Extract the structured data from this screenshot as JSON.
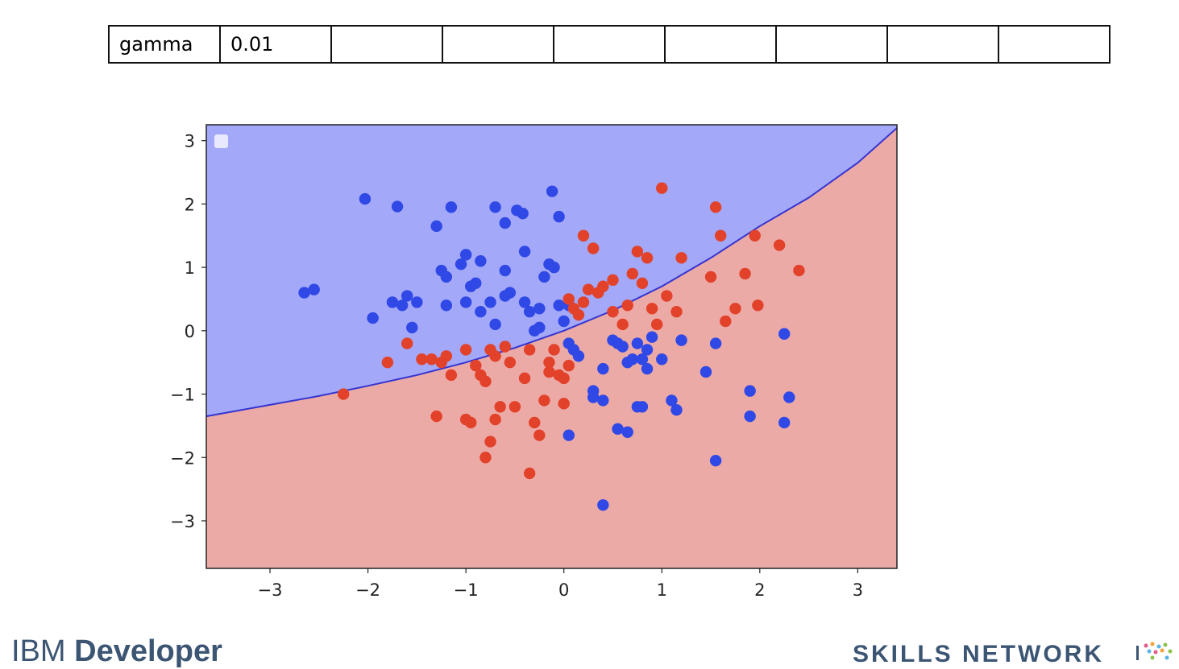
{
  "params": {
    "label": "gamma",
    "value": "0.01",
    "empty_cells": 7
  },
  "footer": {
    "left_plain": "IBM ",
    "left_strong": "Developer",
    "right": "SKILLS NETWORK"
  },
  "colors": {
    "region_blue": "#a3a8f8",
    "region_red": "#ecaaa7",
    "point_blue": "#2f48e6",
    "point_red": "#e2412a",
    "boundary": "#3434d0"
  },
  "chart_data": {
    "type": "scatter",
    "xlim": [
      -3.65,
      3.4
    ],
    "ylim": [
      -3.75,
      3.25
    ],
    "xticks": [
      "−3",
      "−2",
      "−1",
      "0",
      "1",
      "2",
      "3"
    ],
    "xtick_values": [
      -3,
      -2,
      -1,
      0,
      1,
      2,
      3
    ],
    "yticks": [
      "3",
      "2",
      "1",
      "0",
      "−1",
      "−2",
      "−3"
    ],
    "ytick_values": [
      3,
      2,
      1,
      0,
      -1,
      -2,
      -3
    ],
    "grid": false,
    "legend": "top-left",
    "decision_boundary": {
      "x": [
        -3.65,
        -3,
        -2.5,
        -2,
        -1.5,
        -1,
        -0.5,
        0,
        0.5,
        1,
        1.5,
        2,
        2.5,
        3,
        3.4
      ],
      "y": [
        -1.35,
        -1.17,
        -1.03,
        -0.87,
        -0.7,
        -0.5,
        -0.27,
        0.0,
        0.32,
        0.7,
        1.15,
        1.65,
        2.1,
        2.65,
        3.2
      ]
    },
    "series": [
      {
        "class": "blue",
        "points": [
          [
            -2.65,
            0.6
          ],
          [
            -2.55,
            0.65
          ],
          [
            -2.03,
            2.08
          ],
          [
            -1.7,
            1.96
          ],
          [
            -1.95,
            0.2
          ],
          [
            -1.75,
            0.45
          ],
          [
            -1.65,
            0.4
          ],
          [
            -1.6,
            0.55
          ],
          [
            -1.5,
            0.45
          ],
          [
            -1.55,
            0.05
          ],
          [
            -1.3,
            1.65
          ],
          [
            -1.25,
            0.95
          ],
          [
            -1.2,
            0.85
          ],
          [
            -1.15,
            1.95
          ],
          [
            -1.05,
            1.05
          ],
          [
            -1.0,
            1.2
          ],
          [
            -0.95,
            0.7
          ],
          [
            -0.9,
            0.75
          ],
          [
            -0.85,
            1.1
          ],
          [
            -0.75,
            0.45
          ],
          [
            -0.85,
            0.3
          ],
          [
            -0.7,
            1.95
          ],
          [
            -0.7,
            0.1
          ],
          [
            -0.6,
            1.7
          ],
          [
            -0.6,
            0.95
          ],
          [
            -0.55,
            0.6
          ],
          [
            -0.48,
            1.9
          ],
          [
            -0.42,
            1.85
          ],
          [
            -0.4,
            0.45
          ],
          [
            -0.35,
            0.3
          ],
          [
            -0.3,
            0.0
          ],
          [
            -0.25,
            0.05
          ],
          [
            -0.4,
            1.25
          ],
          [
            -0.2,
            0.85
          ],
          [
            -0.15,
            1.05
          ],
          [
            -0.12,
            2.2
          ],
          [
            -0.1,
            1.0
          ],
          [
            -0.05,
            1.8
          ],
          [
            -0.05,
            0.4
          ],
          [
            0.0,
            0.15
          ],
          [
            0.05,
            0.4
          ],
          [
            0.05,
            -0.2
          ],
          [
            0.1,
            -0.3
          ],
          [
            0.15,
            -0.4
          ],
          [
            0.3,
            -0.95
          ],
          [
            0.3,
            -1.05
          ],
          [
            0.4,
            -1.1
          ],
          [
            0.4,
            -0.6
          ],
          [
            0.5,
            -0.15
          ],
          [
            0.55,
            -0.2
          ],
          [
            0.6,
            -0.25
          ],
          [
            0.65,
            -0.5
          ],
          [
            0.7,
            -0.45
          ],
          [
            0.75,
            -0.2
          ],
          [
            0.8,
            -0.45
          ],
          [
            0.85,
            -0.3
          ],
          [
            0.85,
            -0.6
          ],
          [
            0.9,
            -0.1
          ],
          [
            1.0,
            -0.45
          ],
          [
            1.1,
            -1.1
          ],
          [
            1.15,
            -1.25
          ],
          [
            1.2,
            -0.15
          ],
          [
            1.45,
            -0.65
          ],
          [
            1.55,
            -0.2
          ],
          [
            0.55,
            -1.55
          ],
          [
            0.65,
            -1.6
          ],
          [
            0.75,
            -1.2
          ],
          [
            0.8,
            -1.2
          ],
          [
            0.05,
            -1.65
          ],
          [
            1.9,
            -0.95
          ],
          [
            1.9,
            -1.35
          ],
          [
            2.25,
            -0.05
          ],
          [
            2.3,
            -1.05
          ],
          [
            2.25,
            -1.45
          ],
          [
            1.55,
            -2.05
          ],
          [
            0.4,
            -2.75
          ],
          [
            -0.25,
            0.35
          ],
          [
            -0.6,
            0.55
          ],
          [
            -1.0,
            0.45
          ],
          [
            -1.2,
            0.4
          ]
        ]
      },
      {
        "class": "red",
        "points": [
          [
            -2.25,
            -1.0
          ],
          [
            -1.8,
            -0.5
          ],
          [
            -1.6,
            -0.2
          ],
          [
            -1.45,
            -0.45
          ],
          [
            -1.35,
            -0.45
          ],
          [
            -1.25,
            -0.5
          ],
          [
            -1.2,
            -0.4
          ],
          [
            -1.15,
            -0.7
          ],
          [
            -1.3,
            -1.35
          ],
          [
            -1.0,
            -1.4
          ],
          [
            -0.95,
            -1.45
          ],
          [
            -1.0,
            -0.3
          ],
          [
            -0.9,
            -0.55
          ],
          [
            -0.85,
            -0.7
          ],
          [
            -0.8,
            -0.8
          ],
          [
            -0.75,
            -0.3
          ],
          [
            -0.7,
            -0.4
          ],
          [
            -0.7,
            -1.4
          ],
          [
            -0.65,
            -1.2
          ],
          [
            -0.8,
            -2.0
          ],
          [
            -0.75,
            -1.75
          ],
          [
            -0.6,
            -0.25
          ],
          [
            -0.55,
            -0.5
          ],
          [
            -0.5,
            -1.2
          ],
          [
            -0.4,
            -0.75
          ],
          [
            -0.35,
            -0.3
          ],
          [
            -0.3,
            -1.45
          ],
          [
            -0.25,
            -1.65
          ],
          [
            -0.2,
            -1.1
          ],
          [
            -0.15,
            -0.5
          ],
          [
            -0.1,
            -0.3
          ],
          [
            -0.05,
            -0.7
          ],
          [
            0.0,
            -0.75
          ],
          [
            0.0,
            -1.15
          ],
          [
            0.05,
            0.5
          ],
          [
            0.1,
            0.35
          ],
          [
            0.15,
            0.25
          ],
          [
            0.2,
            0.45
          ],
          [
            0.25,
            0.65
          ],
          [
            0.2,
            1.5
          ],
          [
            0.3,
            1.3
          ],
          [
            0.35,
            0.6
          ],
          [
            0.4,
            0.7
          ],
          [
            0.5,
            0.3
          ],
          [
            0.6,
            0.1
          ],
          [
            0.65,
            0.4
          ],
          [
            0.7,
            0.9
          ],
          [
            0.75,
            1.25
          ],
          [
            0.8,
            0.75
          ],
          [
            0.85,
            1.15
          ],
          [
            0.9,
            0.35
          ],
          [
            0.95,
            0.1
          ],
          [
            1.0,
            2.25
          ],
          [
            1.05,
            0.55
          ],
          [
            1.15,
            0.3
          ],
          [
            1.2,
            1.15
          ],
          [
            1.5,
            0.85
          ],
          [
            1.55,
            1.95
          ],
          [
            1.6,
            1.5
          ],
          [
            1.65,
            0.15
          ],
          [
            1.75,
            0.35
          ],
          [
            1.85,
            0.9
          ],
          [
            1.95,
            1.5
          ],
          [
            1.98,
            0.4
          ],
          [
            2.2,
            1.35
          ],
          [
            2.4,
            0.95
          ],
          [
            0.05,
            -0.55
          ],
          [
            -0.35,
            -2.25
          ],
          [
            -0.15,
            -0.65
          ],
          [
            0.5,
            0.8
          ]
        ]
      }
    ]
  }
}
